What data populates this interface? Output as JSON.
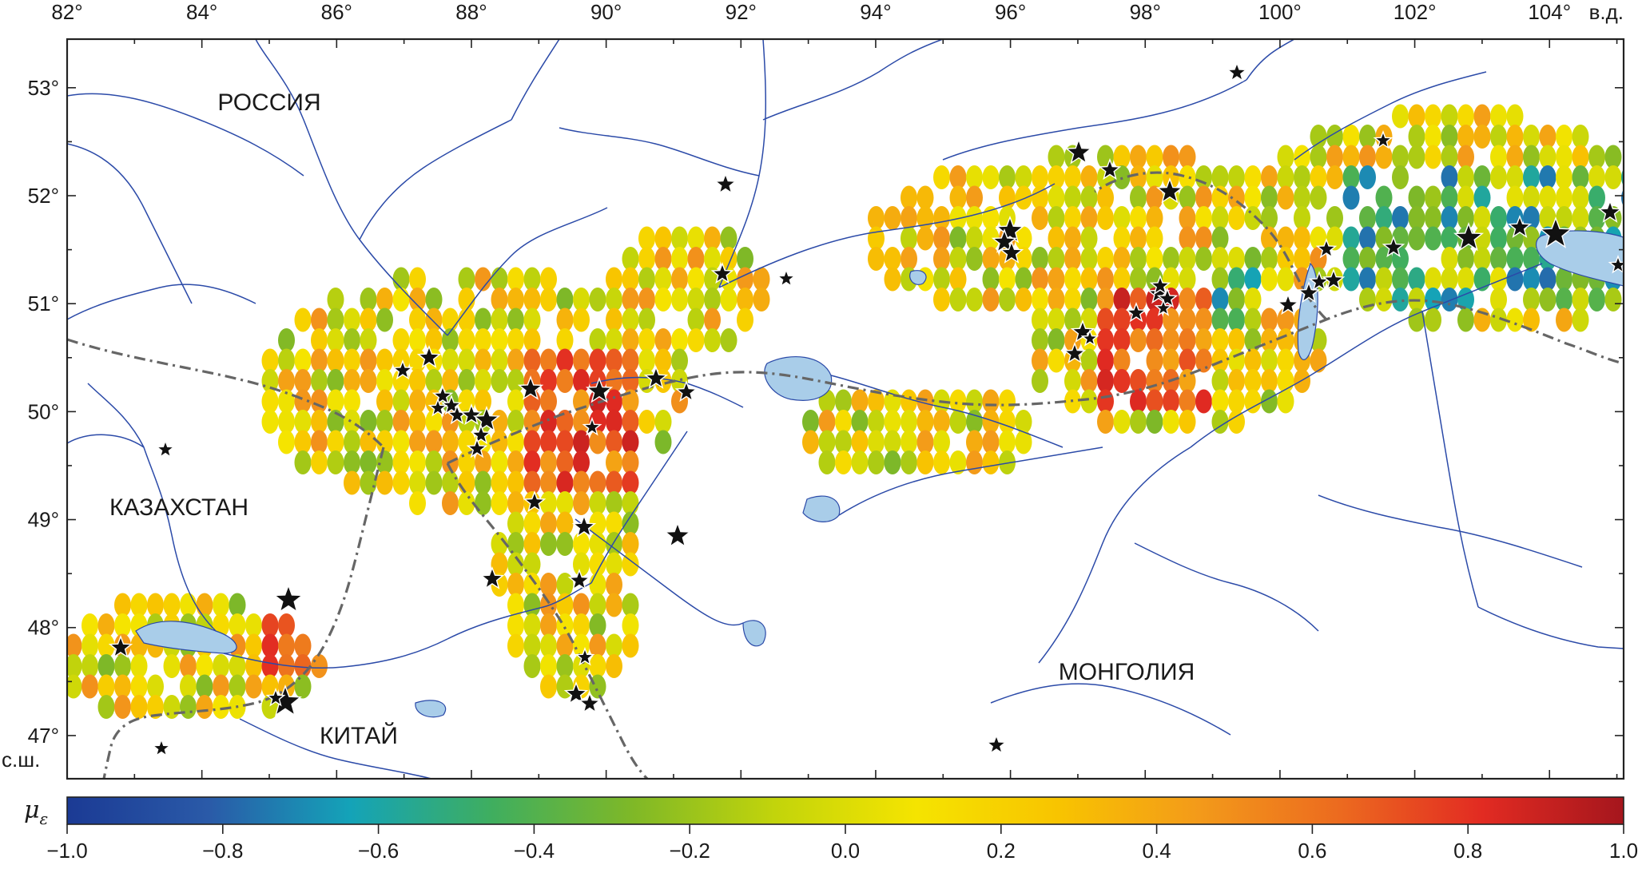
{
  "map": {
    "lon_ticks": [
      "82°",
      "84°",
      "86°",
      "88°",
      "90°",
      "92°",
      "94°",
      "96°",
      "98°",
      "100°",
      "102°",
      "104°"
    ],
    "lon_unit": "в.д.",
    "lat_ticks": [
      "53°",
      "52°",
      "51°",
      "50°",
      "49°",
      "48°",
      "47°"
    ],
    "lat_unit": "с.ш.",
    "countries": [
      "РОССИЯ",
      "КАЗАХСТАН",
      "КИТАЙ",
      "МОНГОЛИЯ"
    ],
    "colors": {
      "river": "#2b4aa8",
      "lake": "#a9cde9",
      "border": "#666666",
      "frame": "#222222"
    }
  },
  "colorbar": {
    "symbol": "μ",
    "subscript": "ε",
    "range": [
      -1.0,
      1.0
    ],
    "tick_labels": [
      "−1.0",
      "−0.8",
      "−0.6",
      "−0.4",
      "−0.2",
      "0.0",
      "0.2",
      "0.4",
      "0.6",
      "0.8",
      "1.0"
    ],
    "stops": [
      "#1b3a94",
      "#2a5aa8",
      "#14a3b8",
      "#3fae5f",
      "#7fb827",
      "#c2d40b",
      "#f5e400",
      "#f8c400",
      "#f39a1a",
      "#ec6a1f",
      "#e22b22",
      "#a5161d"
    ]
  }
}
